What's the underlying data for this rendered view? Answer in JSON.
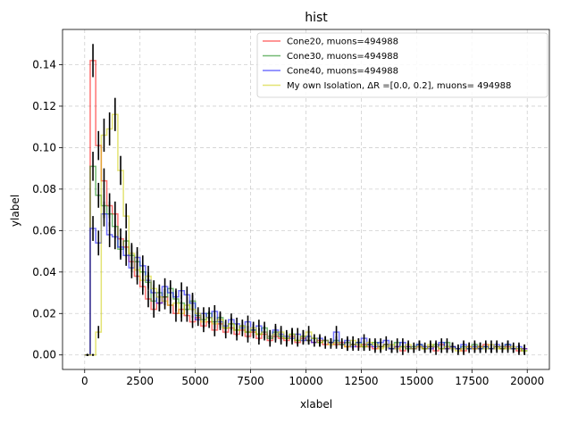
{
  "chart_data": {
    "type": "line",
    "step": true,
    "title": "hist",
    "xlabel": "xlabel",
    "ylabel": "ylabel",
    "xlim": [
      -1000,
      21000
    ],
    "ylim": [
      -0.007,
      0.157
    ],
    "x_ticks": [
      0,
      2500,
      5000,
      7500,
      10000,
      12500,
      15000,
      17500,
      20000
    ],
    "x_tick_labels": [
      "0",
      "2500",
      "5000",
      "7500",
      "10000",
      "12500",
      "15000",
      "17500",
      "20000"
    ],
    "y_ticks": [
      0.0,
      0.02,
      0.04,
      0.06,
      0.08,
      0.1,
      0.12,
      0.14
    ],
    "y_tick_labels": [
      "0.00",
      "0.02",
      "0.04",
      "0.06",
      "0.08",
      "0.10",
      "0.12",
      "0.14"
    ],
    "grid": true,
    "legend_position": "top-right",
    "bin_edges": [
      0,
      250,
      500,
      750,
      1000,
      1250,
      1500,
      1750,
      2000,
      2250,
      2500,
      2750,
      3000,
      3250,
      3500,
      3750,
      4000,
      4250,
      4500,
      4750,
      5000,
      5250,
      5500,
      5750,
      6000,
      6250,
      6500,
      6750,
      7000,
      7250,
      7500,
      7750,
      8000,
      8250,
      8500,
      8750,
      9000,
      9250,
      9500,
      9750,
      10000,
      10250,
      10500,
      10750,
      11000,
      11250,
      11500,
      11750,
      12000,
      12250,
      12500,
      12750,
      13000,
      13250,
      13500,
      13750,
      14000,
      14250,
      14500,
      14750,
      15000,
      15250,
      15500,
      15750,
      16000,
      16250,
      16500,
      16750,
      17000,
      17250,
      17500,
      17750,
      18000,
      18250,
      18500,
      18750,
      19000,
      19250,
      19500,
      19750,
      20000
    ],
    "series": [
      {
        "name": "Cone20, muons=494988",
        "color": "#ff0000",
        "values": [
          0,
          0.142,
          0.101,
          0.084,
          0.072,
          0.068,
          0.056,
          0.052,
          0.045,
          0.038,
          0.033,
          0.027,
          0.022,
          0.025,
          0.028,
          0.024,
          0.02,
          0.022,
          0.019,
          0.016,
          0.018,
          0.014,
          0.016,
          0.012,
          0.015,
          0.011,
          0.013,
          0.01,
          0.012,
          0.009,
          0.011,
          0.008,
          0.01,
          0.007,
          0.009,
          0.008,
          0.007,
          0.009,
          0.006,
          0.008,
          0.007,
          0.006,
          0.007,
          0.005,
          0.006,
          0.005,
          0.006,
          0.004,
          0.005,
          0.004,
          0.005,
          0.004,
          0.003,
          0.004,
          0.005,
          0.003,
          0.004,
          0.002,
          0.004,
          0.003,
          0.004,
          0.003,
          0.004,
          0.002,
          0.005,
          0.003,
          0.004,
          0.003,
          0.002,
          0.004,
          0.003,
          0.004,
          0.005,
          0.003,
          0.004,
          0.003,
          0.004,
          0.003,
          0.002,
          0.003
        ],
        "errors": [
          0,
          0.008,
          0.007,
          0.006,
          0.006,
          0.006,
          0.005,
          0.005,
          0.005,
          0.004,
          0.004,
          0.004,
          0.004,
          0.004,
          0.004,
          0.004,
          0.004,
          0.004,
          0.003,
          0.003,
          0.003,
          0.003,
          0.003,
          0.003,
          0.003,
          0.003,
          0.003,
          0.003,
          0.003,
          0.003,
          0.003,
          0.003,
          0.003,
          0.003,
          0.003,
          0.003,
          0.003,
          0.003,
          0.002,
          0.003,
          0.002,
          0.002,
          0.002,
          0.002,
          0.002,
          0.002,
          0.002,
          0.002,
          0.002,
          0.002,
          0.002,
          0.002,
          0.002,
          0.002,
          0.002,
          0.002,
          0.002,
          0.002,
          0.002,
          0.002,
          0.002,
          0.002,
          0.002,
          0.002,
          0.002,
          0.002,
          0.002,
          0.002,
          0.002,
          0.002,
          0.002,
          0.002,
          0.002,
          0.002,
          0.002,
          0.002,
          0.002,
          0.002,
          0.002,
          0.002
        ]
      },
      {
        "name": "Cone30, muons=494988",
        "color": "#008000",
        "values": [
          0,
          0.091,
          0.077,
          0.072,
          0.068,
          0.062,
          0.051,
          0.055,
          0.048,
          0.045,
          0.04,
          0.035,
          0.026,
          0.03,
          0.028,
          0.032,
          0.027,
          0.025,
          0.022,
          0.026,
          0.019,
          0.017,
          0.02,
          0.016,
          0.018,
          0.013,
          0.015,
          0.012,
          0.014,
          0.011,
          0.012,
          0.01,
          0.013,
          0.008,
          0.011,
          0.009,
          0.008,
          0.01,
          0.007,
          0.009,
          0.007,
          0.008,
          0.006,
          0.007,
          0.006,
          0.007,
          0.005,
          0.006,
          0.005,
          0.006,
          0.004,
          0.005,
          0.006,
          0.004,
          0.005,
          0.003,
          0.006,
          0.004,
          0.003,
          0.004,
          0.005,
          0.003,
          0.004,
          0.005,
          0.003,
          0.006,
          0.004,
          0.003,
          0.004,
          0.003,
          0.005,
          0.003,
          0.004,
          0.003,
          0.004,
          0.003,
          0.005,
          0.003,
          0.003,
          0.002
        ],
        "errors": [
          0,
          0.007,
          0.006,
          0.006,
          0.006,
          0.006,
          0.005,
          0.005,
          0.005,
          0.005,
          0.004,
          0.004,
          0.004,
          0.004,
          0.004,
          0.004,
          0.004,
          0.004,
          0.003,
          0.004,
          0.003,
          0.003,
          0.003,
          0.003,
          0.003,
          0.003,
          0.003,
          0.003,
          0.003,
          0.003,
          0.003,
          0.003,
          0.003,
          0.003,
          0.003,
          0.003,
          0.003,
          0.003,
          0.002,
          0.003,
          0.002,
          0.002,
          0.002,
          0.002,
          0.002,
          0.002,
          0.002,
          0.002,
          0.002,
          0.002,
          0.002,
          0.002,
          0.002,
          0.002,
          0.002,
          0.002,
          0.002,
          0.002,
          0.002,
          0.002,
          0.002,
          0.002,
          0.002,
          0.002,
          0.002,
          0.002,
          0.002,
          0.002,
          0.002,
          0.002,
          0.002,
          0.002,
          0.002,
          0.002,
          0.002,
          0.002,
          0.002,
          0.002,
          0.002,
          0.002
        ]
      },
      {
        "name": "Cone40, muons=494988",
        "color": "#0000ff",
        "values": [
          0,
          0.061,
          0.054,
          0.068,
          0.058,
          0.057,
          0.052,
          0.048,
          0.042,
          0.047,
          0.043,
          0.036,
          0.03,
          0.025,
          0.033,
          0.03,
          0.028,
          0.031,
          0.029,
          0.025,
          0.017,
          0.02,
          0.018,
          0.021,
          0.016,
          0.014,
          0.017,
          0.015,
          0.013,
          0.016,
          0.012,
          0.014,
          0.011,
          0.009,
          0.012,
          0.01,
          0.009,
          0.008,
          0.01,
          0.007,
          0.009,
          0.006,
          0.008,
          0.007,
          0.006,
          0.011,
          0.005,
          0.007,
          0.004,
          0.006,
          0.008,
          0.005,
          0.004,
          0.006,
          0.007,
          0.003,
          0.004,
          0.006,
          0.004,
          0.003,
          0.005,
          0.004,
          0.003,
          0.004,
          0.006,
          0.003,
          0.004,
          0.003,
          0.005,
          0.003,
          0.004,
          0.003,
          0.004,
          0.003,
          0.005,
          0.004,
          0.005,
          0.003,
          0.004,
          0.003
        ],
        "errors": [
          0,
          0.006,
          0.006,
          0.006,
          0.006,
          0.006,
          0.005,
          0.005,
          0.005,
          0.005,
          0.005,
          0.004,
          0.004,
          0.004,
          0.004,
          0.004,
          0.004,
          0.004,
          0.004,
          0.004,
          0.003,
          0.003,
          0.003,
          0.003,
          0.003,
          0.003,
          0.003,
          0.003,
          0.003,
          0.003,
          0.003,
          0.003,
          0.003,
          0.003,
          0.003,
          0.003,
          0.003,
          0.003,
          0.003,
          0.002,
          0.003,
          0.002,
          0.002,
          0.002,
          0.002,
          0.003,
          0.002,
          0.002,
          0.002,
          0.002,
          0.002,
          0.002,
          0.002,
          0.002,
          0.002,
          0.002,
          0.002,
          0.002,
          0.002,
          0.002,
          0.002,
          0.002,
          0.002,
          0.002,
          0.002,
          0.002,
          0.002,
          0.002,
          0.002,
          0.002,
          0.002,
          0.002,
          0.002,
          0.002,
          0.002,
          0.002,
          0.002,
          0.002,
          0.002,
          0.002
        ]
      },
      {
        "name": "My own Isolation, ΔR =[0.0, 0.2], muons= 494988",
        "color": "#cccc00",
        "values": [
          0,
          0,
          0.011,
          0.106,
          0.109,
          0.116,
          0.089,
          0.067,
          0.049,
          0.041,
          0.036,
          0.038,
          0.032,
          0.028,
          0.026,
          0.024,
          0.025,
          0.02,
          0.024,
          0.022,
          0.02,
          0.016,
          0.018,
          0.015,
          0.017,
          0.013,
          0.015,
          0.012,
          0.014,
          0.011,
          0.013,
          0.01,
          0.011,
          0.009,
          0.01,
          0.011,
          0.008,
          0.01,
          0.007,
          0.009,
          0.011,
          0.008,
          0.006,
          0.007,
          0.005,
          0.006,
          0.005,
          0.004,
          0.007,
          0.005,
          0.004,
          0.006,
          0.005,
          0.003,
          0.004,
          0.005,
          0.003,
          0.004,
          0.005,
          0.003,
          0.004,
          0.003,
          0.005,
          0.004,
          0.003,
          0.004,
          0.003,
          0.002,
          0.003,
          0.004,
          0.003,
          0.004,
          0.003,
          0.005,
          0.003,
          0.004,
          0.003,
          0.004,
          0.003,
          0.002
        ],
        "errors": [
          0,
          0,
          0.003,
          0.008,
          0.008,
          0.008,
          0.007,
          0.006,
          0.005,
          0.005,
          0.005,
          0.005,
          0.004,
          0.004,
          0.004,
          0.004,
          0.004,
          0.004,
          0.004,
          0.004,
          0.003,
          0.003,
          0.003,
          0.003,
          0.003,
          0.003,
          0.003,
          0.003,
          0.003,
          0.003,
          0.003,
          0.003,
          0.003,
          0.003,
          0.003,
          0.003,
          0.003,
          0.003,
          0.002,
          0.003,
          0.003,
          0.002,
          0.002,
          0.002,
          0.002,
          0.002,
          0.002,
          0.002,
          0.002,
          0.002,
          0.002,
          0.002,
          0.002,
          0.002,
          0.002,
          0.002,
          0.002,
          0.002,
          0.002,
          0.002,
          0.002,
          0.002,
          0.002,
          0.002,
          0.002,
          0.002,
          0.002,
          0.002,
          0.002,
          0.002,
          0.002,
          0.002,
          0.002,
          0.002,
          0.002,
          0.002,
          0.002,
          0.002,
          0.002,
          0.002
        ]
      }
    ]
  }
}
